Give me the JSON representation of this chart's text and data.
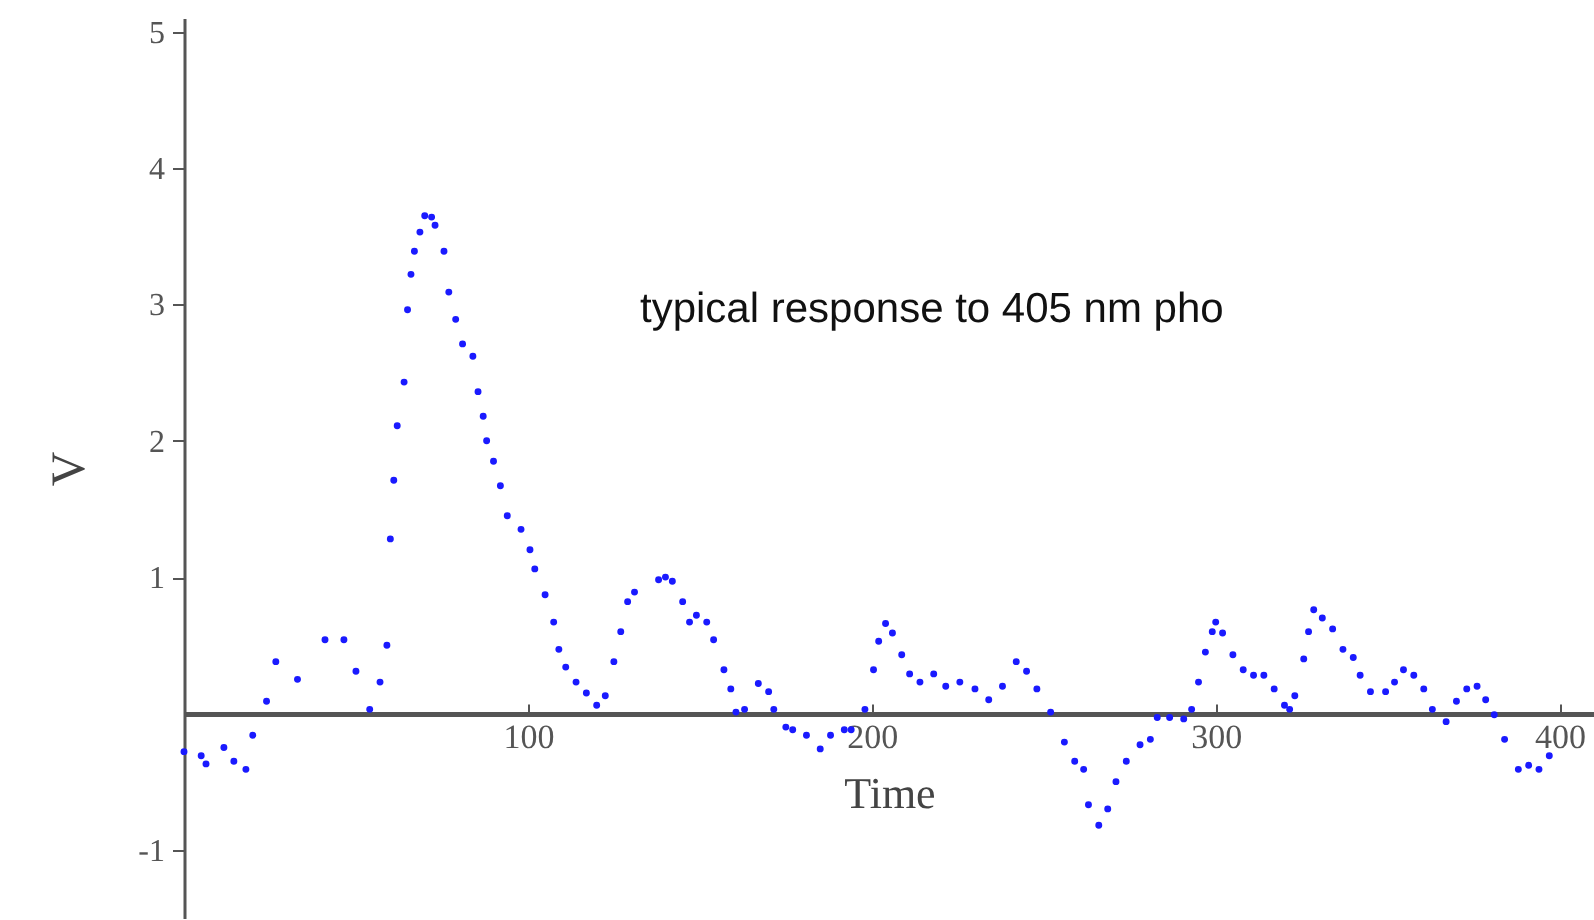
{
  "chart_data": {
    "type": "scatter",
    "xlabel": "Time",
    "ylabel": "V",
    "annotations": [
      "typical response to 405 nm pho"
    ],
    "x": [
      0,
      5,
      6.4,
      11.6,
      14.5,
      18,
      20,
      24,
      26.7,
      33,
      41,
      46.5,
      50,
      54,
      57,
      59,
      60,
      61,
      62,
      64,
      65,
      66,
      67,
      68.6,
      70,
      72,
      73,
      75.6,
      77,
      79,
      81,
      84,
      85.5,
      87,
      88,
      90,
      92,
      94,
      98,
      100.6,
      102,
      105,
      107.5,
      109,
      111,
      114,
      117,
      120,
      122.5,
      125,
      127,
      129,
      131,
      138,
      140,
      142,
      145,
      147,
      149,
      152,
      154,
      157,
      159,
      160.5,
      163,
      167,
      170,
      171.5,
      175,
      177,
      181,
      185,
      188,
      192,
      194,
      198,
      200.5,
      202,
      204,
      206,
      208.7,
      211,
      214,
      218,
      221.5,
      225.6,
      230,
      234,
      238,
      242,
      245,
      248,
      252,
      256,
      259,
      261.6,
      263,
      266,
      268.6,
      271,
      274,
      278,
      281,
      283,
      286.6,
      290.7,
      293,
      295,
      297,
      299,
      300,
      302,
      305,
      308,
      311,
      314,
      317,
      320,
      321.5,
      323,
      325.6,
      327,
      328.5,
      331,
      334,
      337,
      340,
      342,
      345,
      349.4,
      352,
      354.6,
      357.6,
      360.5,
      363,
      367,
      370,
      373,
      376,
      378.5,
      381,
      384,
      388,
      391,
      394,
      397
    ],
    "series": [
      {
        "color": "#1a1aff",
        "values": [
          -0.28,
          -0.31,
          -0.37,
          -0.25,
          -0.35,
          -0.41,
          -0.16,
          0.09,
          0.38,
          0.25,
          0.54,
          0.54,
          0.31,
          0.03,
          0.23,
          0.5,
          1.28,
          1.71,
          2.11,
          2.43,
          2.96,
          3.22,
          3.39,
          3.53,
          3.65,
          3.64,
          3.58,
          3.39,
          3.09,
          2.89,
          2.71,
          2.62,
          2.36,
          2.18,
          2.0,
          1.85,
          1.67,
          1.45,
          1.35,
          1.2,
          1.06,
          0.87,
          0.67,
          0.47,
          0.34,
          0.23,
          0.15,
          0.06,
          0.13,
          0.38,
          0.6,
          0.82,
          0.89,
          0.98,
          1.0,
          0.97,
          0.82,
          0.67,
          0.72,
          0.67,
          0.54,
          0.32,
          0.18,
          0.01,
          0.03,
          0.22,
          0.16,
          0.03,
          -0.1,
          -0.12,
          -0.16,
          -0.26,
          -0.16,
          -0.12,
          -0.12,
          0.03,
          0.32,
          0.53,
          0.66,
          0.59,
          0.43,
          0.29,
          0.23,
          0.29,
          0.2,
          0.23,
          0.18,
          0.1,
          0.2,
          0.38,
          0.31,
          0.18,
          0.01,
          -0.21,
          -0.35,
          -0.41,
          -0.67,
          -0.82,
          -0.7,
          -0.5,
          -0.35,
          -0.23,
          -0.19,
          -0.03,
          -0.03,
          -0.04,
          0.03,
          0.23,
          0.45,
          0.6,
          0.67,
          0.59,
          0.43,
          0.32,
          0.28,
          0.28,
          0.18,
          0.06,
          0.03,
          0.13,
          0.4,
          0.6,
          0.76,
          0.7,
          0.62,
          0.47,
          0.41,
          0.28,
          0.16,
          0.16,
          0.23,
          0.32,
          0.28,
          0.18,
          0.03,
          -0.06,
          0.09,
          0.18,
          0.2,
          0.1,
          -0.01,
          -0.19,
          -0.41,
          -0.38,
          -0.41,
          -0.31
        ]
      }
    ],
    "xlim": [
      0,
      410
    ],
    "ylim": [
      -1.5,
      5.1
    ],
    "xticks": [
      100,
      200,
      300,
      400
    ],
    "yticks": [
      -1,
      1,
      2,
      3,
      4,
      5
    ],
    "marker": "circle"
  }
}
